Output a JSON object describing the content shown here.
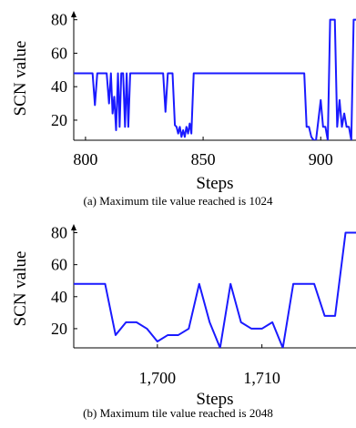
{
  "chart_data": [
    {
      "type": "line",
      "title": "",
      "xlabel": "Steps",
      "ylabel": "SCN value",
      "caption": "(a)  Maximum tile value reached is 1024",
      "xlim": [
        795,
        915
      ],
      "ylim": [
        8,
        82
      ],
      "x_ticks": [
        800,
        850,
        900
      ],
      "x_tick_labels": [
        "800",
        "850",
        "900"
      ],
      "y_ticks": [
        20,
        40,
        60,
        80
      ],
      "y_tick_labels": [
        "20",
        "40",
        "60",
        "80"
      ],
      "grid": false,
      "color": "#1a1aff",
      "series": [
        {
          "x": [
            795,
            803,
            804,
            805,
            806,
            807,
            808,
            809,
            810,
            810.8,
            811.5,
            812.2,
            813,
            813.8,
            814.5,
            815.2,
            816,
            816.8,
            817.5,
            818.2,
            819,
            819.8,
            820.5,
            821.2,
            822,
            833,
            834,
            835,
            836,
            837,
            838,
            838.7,
            839.4,
            840.1,
            840.8,
            841.5,
            842.2,
            842.9,
            843.6,
            844.3,
            845,
            846,
            893,
            894,
            895,
            896,
            897,
            898,
            899,
            900,
            901,
            902,
            903,
            904,
            905,
            906,
            907,
            908,
            909,
            910,
            911,
            912,
            913,
            914,
            915
          ],
          "y": [
            48,
            48,
            29,
            48,
            48,
            48,
            48,
            48,
            30,
            48,
            24,
            34,
            14,
            48,
            16,
            48,
            48,
            16,
            48,
            16,
            48,
            48,
            48,
            48,
            48,
            48,
            25,
            48,
            48,
            48,
            17,
            16,
            12,
            16,
            10,
            14,
            10,
            16,
            12,
            18,
            12,
            48,
            48,
            16,
            16,
            10,
            8,
            8,
            20,
            32,
            16,
            16,
            8,
            80,
            80,
            80,
            16,
            32,
            16,
            24,
            16,
            16,
            8,
            80,
            80
          ]
        }
      ]
    },
    {
      "type": "line",
      "title": "",
      "xlabel": "Steps",
      "ylabel": "SCN value",
      "caption": "(b)  Maximum tile value reached is 2048",
      "xlim": [
        1692,
        1719
      ],
      "ylim": [
        8,
        82
      ],
      "x_ticks": [
        1700,
        1710
      ],
      "x_tick_labels": [
        "1,700",
        "1,710"
      ],
      "y_ticks": [
        20,
        40,
        60,
        80
      ],
      "y_tick_labels": [
        "20",
        "40",
        "60",
        "80"
      ],
      "grid": false,
      "color": "#1a1aff",
      "series": [
        {
          "x": [
            1692,
            1695,
            1696,
            1697,
            1698,
            1699,
            1700,
            1701,
            1702,
            1703,
            1704,
            1705,
            1706,
            1707,
            1708,
            1709,
            1710,
            1711,
            1712,
            1713,
            1714,
            1715,
            1716,
            1717,
            1718,
            1719
          ],
          "y": [
            48,
            48,
            16,
            24,
            24,
            20,
            12,
            16,
            16,
            20,
            48,
            24,
            8,
            48,
            24,
            20,
            20,
            24,
            8,
            48,
            48,
            48,
            28,
            28,
            80,
            80
          ]
        }
      ]
    }
  ]
}
